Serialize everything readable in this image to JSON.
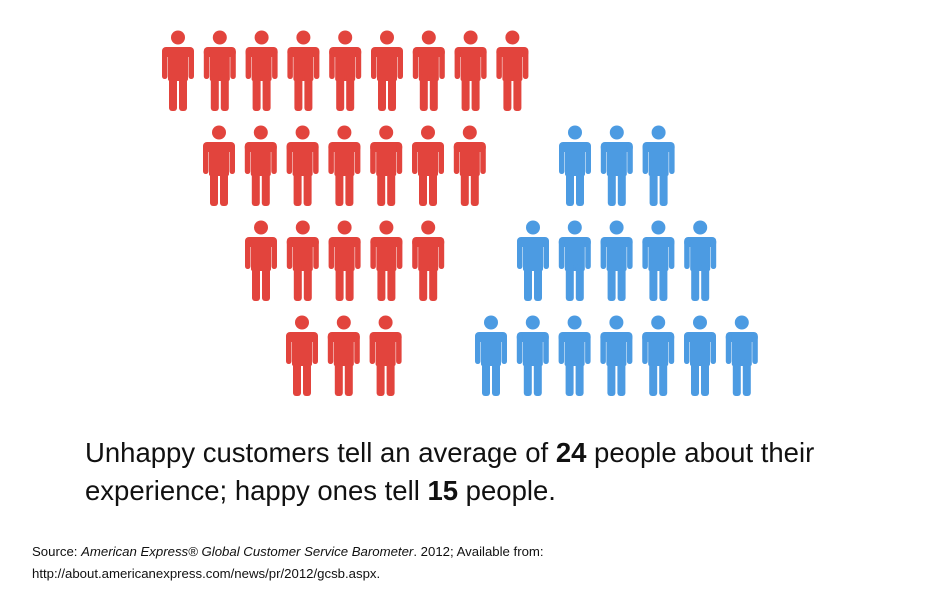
{
  "chart_data": {
    "type": "pictograph",
    "unit": "person-icon",
    "series": [
      {
        "value": 24,
        "color": "#E2443D",
        "rows": [
          9,
          7,
          5,
          3
        ]
      },
      {
        "value": 15,
        "color": "#4C9BE2",
        "rows": [
          3,
          5,
          7
        ]
      }
    ]
  },
  "headline": {
    "part1": "Unhappy customers tell an average of ",
    "num1": "24",
    "part2": " people about their experience; happy ones tell ",
    "num2": "15",
    "part3": " people."
  },
  "source": {
    "prefix": "Source: ",
    "title": "American Express® Global Customer Service Barometer",
    "suffix": ". 2012; Available from:",
    "url": "http://about.americanexpress.com/news/pr/2012/gcsb.aspx."
  }
}
